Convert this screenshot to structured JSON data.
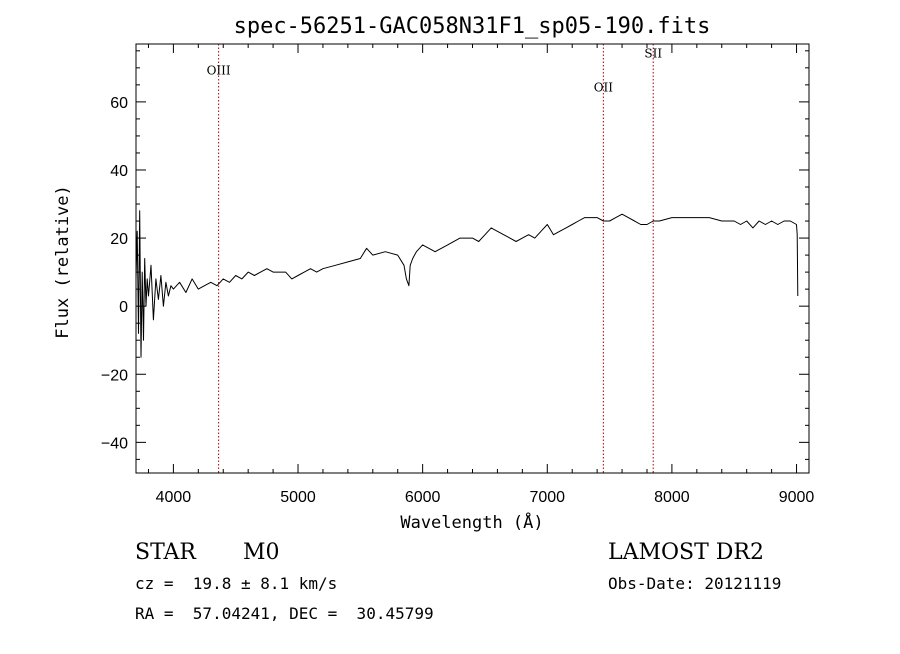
{
  "chart_data": {
    "type": "line",
    "title": "spec-56251-GAC058N31F1_sp05-190.fits",
    "xlabel": "Wavelength (Å)",
    "ylabel": "Flux (relative)",
    "xlim": [
      3700,
      9100
    ],
    "ylim": [
      -49,
      77
    ],
    "xticks": [
      4000,
      5000,
      6000,
      7000,
      8000,
      9000
    ],
    "yticks": [
      -40,
      -20,
      0,
      20,
      40,
      60
    ],
    "line_color": "#000000",
    "marker_color": "#aa0000",
    "grid": false,
    "lines": [
      {
        "name": "OIII",
        "wavelength": 4363,
        "label_y": 68
      },
      {
        "name": "OII",
        "wavelength": 7450,
        "label_y": 63
      },
      {
        "name": "SII",
        "wavelength": 7850,
        "label_y": 73
      }
    ],
    "series": [
      {
        "x": [
          3700,
          3710,
          3720,
          3730,
          3740,
          3750,
          3760,
          3770,
          3780,
          3790,
          3800,
          3820,
          3840,
          3860,
          3880,
          3900,
          3920,
          3940,
          3960,
          3980,
          4000,
          4050,
          4100,
          4150,
          4200,
          4250,
          4300,
          4350,
          4400,
          4450,
          4500,
          4550,
          4600,
          4650,
          4700,
          4750,
          4800,
          4850,
          4900,
          4950,
          5000,
          5050,
          5100,
          5150,
          5200,
          5300,
          5400,
          5500,
          5550,
          5600,
          5700,
          5800,
          5850,
          5870,
          5890,
          5900,
          5920,
          5950,
          6000,
          6100,
          6200,
          6300,
          6400,
          6450,
          6500,
          6550,
          6600,
          6650,
          6700,
          6750,
          6800,
          6850,
          6900,
          6950,
          7000,
          7050,
          7100,
          7150,
          7200,
          7250,
          7300,
          7350,
          7400,
          7450,
          7500,
          7550,
          7600,
          7650,
          7700,
          7750,
          7800,
          7850,
          7900,
          8000,
          8100,
          8200,
          8300,
          8400,
          8500,
          8550,
          8600,
          8650,
          8700,
          8750,
          8800,
          8850,
          8900,
          8950,
          9000,
          9005,
          9010
        ],
        "values": [
          8,
          22,
          -8,
          28,
          -15,
          10,
          -10,
          14,
          0,
          8,
          3,
          12,
          -4,
          8,
          2,
          9,
          0,
          7,
          3,
          6,
          5,
          7,
          4,
          8,
          5,
          6,
          7,
          6,
          8,
          7,
          9,
          8,
          10,
          9,
          10,
          11,
          10,
          10,
          10,
          8,
          9,
          10,
          11,
          10,
          11,
          12,
          13,
          14,
          17,
          15,
          16,
          15,
          12,
          8,
          6,
          12,
          14,
          16,
          18,
          16,
          18,
          20,
          20,
          19,
          21,
          23,
          22,
          21,
          20,
          19,
          20,
          21,
          20,
          22,
          24,
          21,
          22,
          23,
          24,
          25,
          26,
          26,
          26,
          25,
          25,
          26,
          27,
          26,
          25,
          24,
          24,
          25,
          25,
          26,
          26,
          26,
          26,
          25,
          25,
          24,
          25,
          23,
          25,
          24,
          25,
          24,
          25,
          25,
          24,
          21,
          3
        ]
      }
    ]
  },
  "info": {
    "object_class": "STAR",
    "subclass": "M0",
    "survey": "LAMOST DR2",
    "redshift": "cz =  19.8 ± 8.1 km/s",
    "obs_date": "Obs-Date: 20121119",
    "coords": "RA =  57.04241, DEC =  30.45799"
  }
}
